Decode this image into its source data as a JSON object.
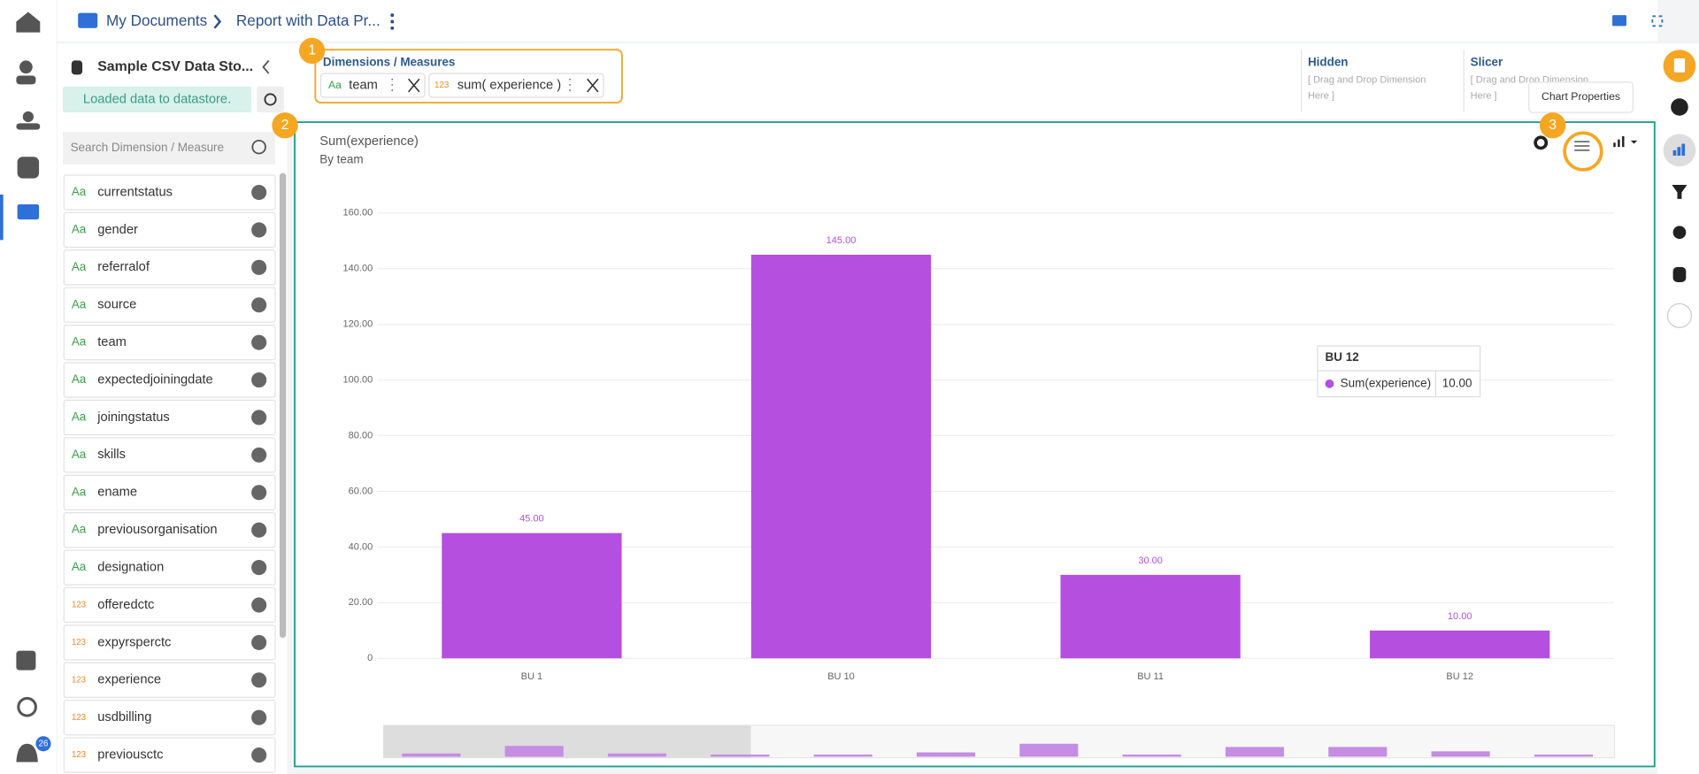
{
  "breadcrumb": {
    "root": "My Documents",
    "report": "Report with Data Pr..."
  },
  "datastore": {
    "name": "Sample CSV Data Sto...",
    "status": "Loaded data to datastore.",
    "search_placeholder": "Search Dimension / Measure"
  },
  "fields": [
    {
      "type": "Aa",
      "name": "currentstatus"
    },
    {
      "type": "Aa",
      "name": "gender"
    },
    {
      "type": "Aa",
      "name": "referralof"
    },
    {
      "type": "Aa",
      "name": "source"
    },
    {
      "type": "Aa",
      "name": "team"
    },
    {
      "type": "Aa",
      "name": "expectedjoiningdate"
    },
    {
      "type": "Aa",
      "name": "joiningstatus"
    },
    {
      "type": "Aa",
      "name": "skills"
    },
    {
      "type": "Aa",
      "name": "ename"
    },
    {
      "type": "Aa",
      "name": "previousorganisation"
    },
    {
      "type": "Aa",
      "name": "designation"
    },
    {
      "type": "123",
      "name": "offeredctc"
    },
    {
      "type": "123",
      "name": "expyrsperctc"
    },
    {
      "type": "123",
      "name": "experience"
    },
    {
      "type": "123",
      "name": "usdbilling"
    },
    {
      "type": "123",
      "name": "previousctc"
    }
  ],
  "dimensions_measures": {
    "title": "Dimensions / Measures",
    "items": [
      {
        "type": "Aa",
        "name": "team"
      },
      {
        "type": "123",
        "name": "sum( experience )"
      }
    ]
  },
  "hidden": {
    "title": "Hidden",
    "hint_1": "[ Drag and Drop Dimension",
    "hint_2": "Here ]"
  },
  "slicer": {
    "title": "Slicer",
    "hint_1": "[ Drag and Drop Dimension",
    "hint_2": "Here ]"
  },
  "properties_tooltip": "Chart Properties",
  "callouts": [
    "1",
    "2",
    "3"
  ],
  "notification_count": "26",
  "chart_data": {
    "type": "bar",
    "title": "Sum(experience)",
    "subtitle": "By team",
    "categories": [
      "BU 1",
      "BU 10",
      "BU 11",
      "BU 12"
    ],
    "values": [
      45,
      145,
      30,
      10
    ],
    "value_labels": [
      "45.00",
      "145.00",
      "30.00",
      "10.00"
    ],
    "color": "#b44fdf",
    "grid": true,
    "ylim": [
      0,
      160
    ],
    "yticks": [
      0,
      {
        "value": 20,
        "label": "20.00"
      },
      {
        "value": 40,
        "label": "40.00"
      },
      {
        "value": 60,
        "label": "60.00"
      },
      {
        "value": 80,
        "label": "80.00"
      },
      {
        "value": 100,
        "label": "100.00"
      },
      {
        "value": 120,
        "label": "120.00"
      },
      {
        "value": 140,
        "label": "140.00"
      },
      {
        "value": 160,
        "label": "160.00"
      }
    ],
    "tooltip": {
      "title": "BU 12",
      "name": "Sum(experience)",
      "value": "10.00"
    }
  }
}
